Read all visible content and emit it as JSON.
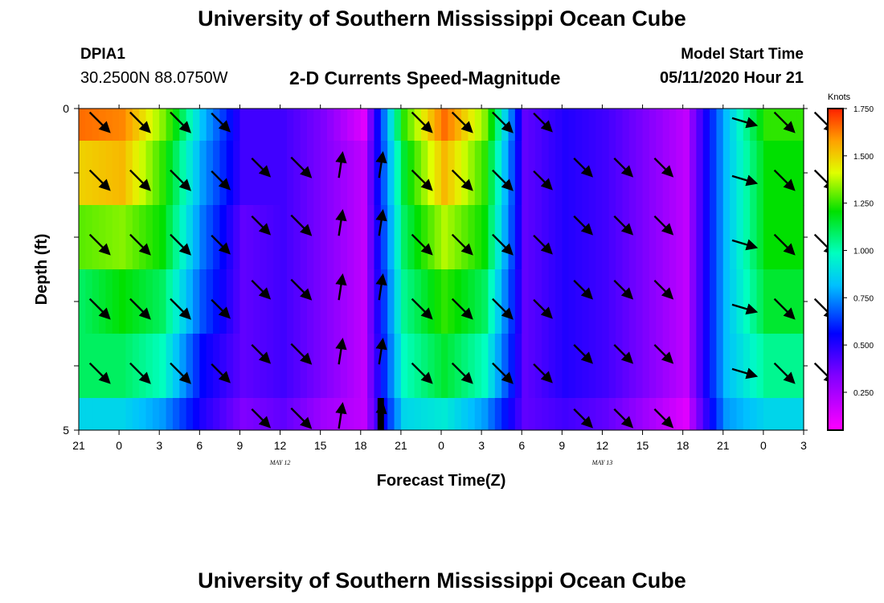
{
  "header": {
    "title": "University of Southern Mississippi Ocean Cube",
    "station_id": "DPIA1",
    "station_coords": "30.2500N 88.0750W",
    "model_start_label": "Model Start Time",
    "model_start_time": "05/11/2020 Hour 21"
  },
  "footer": {
    "title": "University of Southern Mississippi Ocean Cube"
  },
  "chart_data": {
    "type": "heatmap",
    "title": "2-D Currents Speed-Magnitude",
    "xlabel": "Forecast Time(Z)",
    "ylabel": "Depth (ft)",
    "y_ticks": [
      "0",
      "5"
    ],
    "ylim": [
      0,
      5
    ],
    "x_tick_labels": [
      "21",
      "0",
      "3",
      "6",
      "9",
      "12",
      "15",
      "18",
      "21",
      "0",
      "3",
      "6",
      "9",
      "12",
      "15",
      "18",
      "21",
      "0",
      "3"
    ],
    "date_labels": [
      {
        "label": "MAY 12",
        "at_tick": 5
      },
      {
        "label": "MAY 13",
        "at_tick": 13
      }
    ],
    "colorbar": {
      "units": "Knots",
      "ticks": [
        "1.750",
        "1.500",
        "1.250",
        "1.000",
        "0.750",
        "0.500",
        "0.250"
      ],
      "range": [
        0.05,
        1.75
      ]
    },
    "depth_bins": 5,
    "columns": [
      {
        "hour_offset": 0,
        "speeds": [
          1.6,
          1.4,
          1.15,
          0.95,
          0.95,
          0.75
        ]
      },
      {
        "hour_offset": 3,
        "speeds": [
          1.55,
          1.45,
          1.2,
          1.05,
          0.95,
          0.75
        ]
      },
      {
        "hour_offset": 6,
        "speeds": [
          1.2,
          1.1,
          1.05,
          0.95,
          0.85,
          0.65
        ]
      },
      {
        "hour_offset": 9,
        "speeds": [
          0.7,
          0.65,
          0.6,
          0.55,
          0.45,
          0.4
        ]
      },
      {
        "hour_offset": 12,
        "speeds": [
          0.35,
          0.35,
          0.3,
          0.3,
          0.3,
          0.25
        ]
      },
      {
        "hour_offset": 15,
        "speeds": [
          0.35,
          0.35,
          0.35,
          0.35,
          0.35,
          0.3
        ]
      },
      {
        "hour_offset": 18,
        "speeds": [
          0.25,
          0.25,
          0.25,
          0.25,
          0.25,
          0.2
        ]
      },
      {
        "hour_offset": 21,
        "speeds": [
          0.1,
          0.15,
          0.15,
          0.15,
          0.15,
          0.15
        ]
      },
      {
        "hour_offset": 24,
        "speeds": [
          1.1,
          1.0,
          0.95,
          0.9,
          0.85,
          0.75
        ]
      },
      {
        "hour_offset": 27,
        "speeds": [
          1.6,
          1.45,
          1.25,
          1.1,
          1.0,
          0.8
        ]
      },
      {
        "hour_offset": 30,
        "speeds": [
          1.2,
          1.1,
          1.05,
          0.95,
          0.85,
          0.65
        ]
      },
      {
        "hour_offset": 33,
        "speeds": [
          0.3,
          0.3,
          0.3,
          0.3,
          0.3,
          0.3
        ]
      },
      {
        "hour_offset": 36,
        "speeds": [
          0.4,
          0.4,
          0.4,
          0.4,
          0.4,
          0.35
        ]
      },
      {
        "hour_offset": 39,
        "speeds": [
          0.35,
          0.35,
          0.35,
          0.35,
          0.35,
          0.3
        ]
      },
      {
        "hour_offset": 42,
        "speeds": [
          0.25,
          0.25,
          0.25,
          0.25,
          0.25,
          0.2
        ]
      },
      {
        "hour_offset": 45,
        "speeds": [
          0.15,
          0.15,
          0.15,
          0.15,
          0.15,
          0.1
        ]
      },
      {
        "hour_offset": 48,
        "speeds": [
          0.7,
          0.7,
          0.7,
          0.7,
          0.7,
          0.65
        ]
      },
      {
        "hour_offset": 51,
        "speeds": [
          1.1,
          1.05,
          1.05,
          1.0,
          0.9,
          0.75
        ]
      },
      {
        "hour_offset": 54,
        "speeds": [
          1.1,
          1.05,
          1.05,
          1.0,
          0.9,
          0.75
        ]
      }
    ],
    "vectors": [
      {
        "hour": 1.5,
        "depths": [
          0.2,
          1.1,
          2.1,
          3.1,
          4.1
        ],
        "dir": "SE",
        "len": 1.0
      },
      {
        "hour": 4.5,
        "depths": [
          0.2,
          1.1,
          2.1,
          3.1,
          4.1
        ],
        "dir": "SE",
        "len": 1.0
      },
      {
        "hour": 7.5,
        "depths": [
          0.2,
          1.1,
          2.1,
          3.1,
          4.1
        ],
        "dir": "SE",
        "len": 1.0
      },
      {
        "hour": 10.5,
        "depths": [
          0.2,
          1.1,
          2.1,
          3.1,
          4.1
        ],
        "dir": "SE",
        "len": 0.9
      },
      {
        "hour": 13.5,
        "depths": [
          0.9,
          1.8,
          2.8,
          3.8,
          4.8
        ],
        "dir": "SE",
        "len": 0.9
      },
      {
        "hour": 16.5,
        "depths": [
          0.9,
          1.8,
          2.8,
          3.8,
          4.8
        ],
        "dir": "SE",
        "len": 1.0
      },
      {
        "hour": 19.5,
        "depths": [
          0.9,
          1.8,
          2.8,
          3.8,
          4.8
        ],
        "dir": "N",
        "len": 0.9
      },
      {
        "hour": 22.5,
        "depths": [
          0.9,
          1.8,
          2.8,
          3.8,
          4.8
        ],
        "dir": "N",
        "len": 0.9
      },
      {
        "hour": 25.5,
        "depths": [
          0.2,
          1.1,
          2.1,
          3.1,
          4.1
        ],
        "dir": "SE",
        "len": 1.0
      },
      {
        "hour": 28.5,
        "depths": [
          0.2,
          1.1,
          2.1,
          3.1,
          4.1
        ],
        "dir": "SE",
        "len": 1.0
      },
      {
        "hour": 31.5,
        "depths": [
          0.2,
          1.1,
          2.1,
          3.1,
          4.1
        ],
        "dir": "SE",
        "len": 1.0
      },
      {
        "hour": 34.5,
        "depths": [
          0.2,
          1.1,
          2.1,
          3.1,
          4.1
        ],
        "dir": "SE",
        "len": 0.9
      },
      {
        "hour": 37.5,
        "depths": [
          0.9,
          1.8,
          2.8,
          3.8,
          4.8
        ],
        "dir": "SE",
        "len": 0.9
      },
      {
        "hour": 40.5,
        "depths": [
          0.9,
          1.8,
          2.8,
          3.8,
          4.8
        ],
        "dir": "SE",
        "len": 0.9
      },
      {
        "hour": 43.5,
        "depths": [
          0.9,
          1.8,
          2.8,
          3.8,
          4.8
        ],
        "dir": "SE",
        "len": 0.9
      },
      {
        "hour": 49.5,
        "depths": [
          0.2,
          1.1,
          2.1,
          3.1,
          4.1
        ],
        "dir": "ESE",
        "len": 0.9
      },
      {
        "hour": 52.5,
        "depths": [
          0.2,
          1.1,
          2.1,
          3.1,
          4.1
        ],
        "dir": "SE",
        "len": 1.0
      },
      {
        "hour": 55.5,
        "depths": [
          0.2,
          1.1,
          2.1,
          3.1,
          4.1
        ],
        "dir": "SE",
        "len": 1.0
      }
    ],
    "now_marker": {
      "hour": 22.5
    }
  }
}
